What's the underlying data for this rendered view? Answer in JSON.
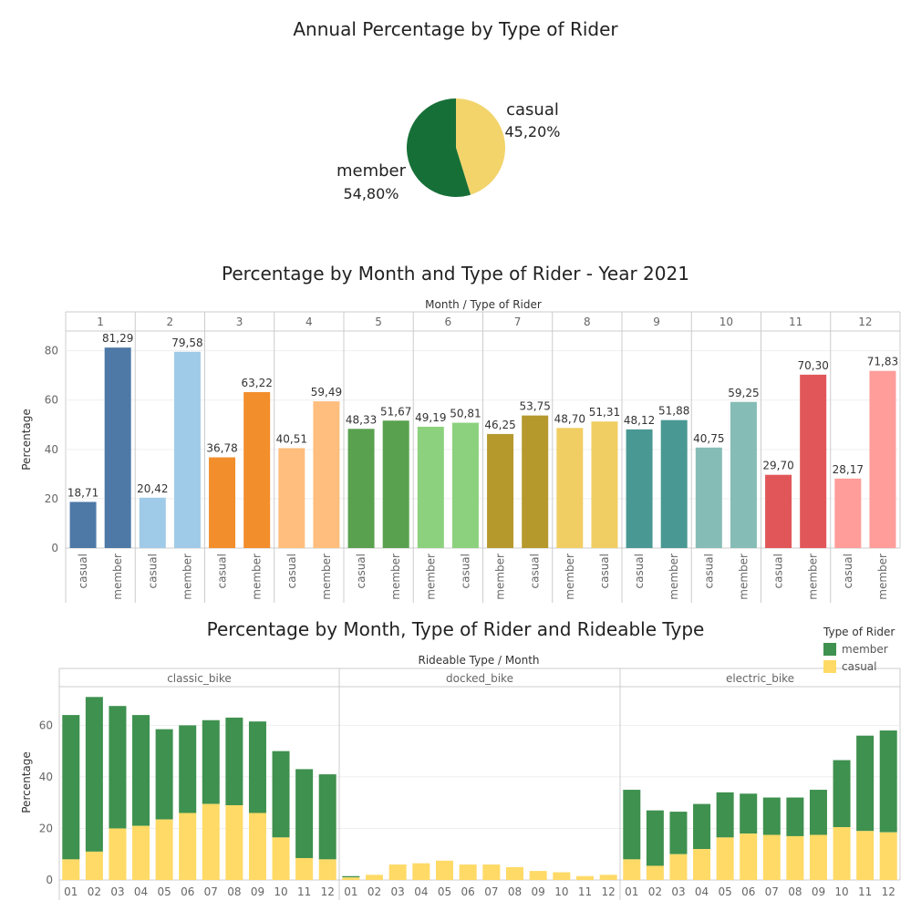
{
  "pie": {
    "title": "Annual Percentage by Type of Rider",
    "casual_label": "casual",
    "casual_value": "45,20%",
    "member_label": "member",
    "member_value": "54,80%"
  },
  "bars": {
    "title": "Percentage by Month and Type of Rider - Year 2021",
    "header": "Month  /  Type of Rider",
    "ylabel": "Percentage"
  },
  "stacked": {
    "title": "Percentage by Month, Type of Rider and Rideable Type",
    "header": "Rideable Type  /  Month",
    "ylabel": "Percentage"
  },
  "legend": {
    "title": "Type of Rider",
    "member": "member",
    "casual": "casual"
  },
  "chart_data": [
    {
      "type": "pie",
      "title": "Annual Percentage by Type of Rider",
      "slices": [
        {
          "name": "member",
          "value": 54.8,
          "label": "54,80%",
          "color": "#166F37"
        },
        {
          "name": "casual",
          "value": 45.2,
          "label": "45,20%",
          "color": "#F2D46B"
        }
      ]
    },
    {
      "type": "bar",
      "title": "Percentage by Month and Type of Rider - Year 2021",
      "xlabel": "Month / Type of Rider",
      "ylabel": "Percentage",
      "ylim": [
        0,
        88
      ],
      "yticks": [
        0,
        20,
        40,
        60,
        80
      ],
      "groups": [
        {
          "month": "1",
          "bars": [
            {
              "rider": "casual",
              "value": 18.71,
              "label": "18,71",
              "color": "#4E79A7"
            },
            {
              "rider": "member",
              "value": 81.29,
              "label": "81,29",
              "color": "#4E79A7"
            }
          ]
        },
        {
          "month": "2",
          "bars": [
            {
              "rider": "casual",
              "value": 20.42,
              "label": "20,42",
              "color": "#A0CBE8"
            },
            {
              "rider": "member",
              "value": 79.58,
              "label": "79,58",
              "color": "#A0CBE8"
            }
          ]
        },
        {
          "month": "3",
          "bars": [
            {
              "rider": "casual",
              "value": 36.78,
              "label": "36,78",
              "color": "#F28E2B"
            },
            {
              "rider": "member",
              "value": 63.22,
              "label": "63,22",
              "color": "#F28E2B"
            }
          ]
        },
        {
          "month": "4",
          "bars": [
            {
              "rider": "casual",
              "value": 40.51,
              "label": "40,51",
              "color": "#FFBE7D"
            },
            {
              "rider": "member",
              "value": 59.49,
              "label": "59,49",
              "color": "#FFBE7D"
            }
          ]
        },
        {
          "month": "5",
          "bars": [
            {
              "rider": "casual",
              "value": 48.33,
              "label": "48,33",
              "color": "#59A14F"
            },
            {
              "rider": "member",
              "value": 51.67,
              "label": "51,67",
              "color": "#59A14F"
            }
          ]
        },
        {
          "month": "6",
          "bars": [
            {
              "rider": "member",
              "value": 49.19,
              "label": "49,19",
              "color": "#8CD17D"
            },
            {
              "rider": "casual",
              "value": 50.81,
              "label": "50,81",
              "color": "#8CD17D"
            }
          ]
        },
        {
          "month": "7",
          "bars": [
            {
              "rider": "member",
              "value": 46.25,
              "label": "46,25",
              "color": "#B6992D"
            },
            {
              "rider": "casual",
              "value": 53.75,
              "label": "53,75",
              "color": "#B6992D"
            }
          ]
        },
        {
          "month": "8",
          "bars": [
            {
              "rider": "member",
              "value": 48.7,
              "label": "48,70",
              "color": "#F1CE63"
            },
            {
              "rider": "casual",
              "value": 51.31,
              "label": "51,31",
              "color": "#F1CE63"
            }
          ]
        },
        {
          "month": "9",
          "bars": [
            {
              "rider": "casual",
              "value": 48.12,
              "label": "48,12",
              "color": "#499894"
            },
            {
              "rider": "member",
              "value": 51.88,
              "label": "51,88",
              "color": "#499894"
            }
          ]
        },
        {
          "month": "10",
          "bars": [
            {
              "rider": "casual",
              "value": 40.75,
              "label": "40,75",
              "color": "#86BCB6"
            },
            {
              "rider": "member",
              "value": 59.25,
              "label": "59,25",
              "color": "#86BCB6"
            }
          ]
        },
        {
          "month": "11",
          "bars": [
            {
              "rider": "casual",
              "value": 29.7,
              "label": "29,70",
              "color": "#E15759"
            },
            {
              "rider": "member",
              "value": 70.3,
              "label": "70,30",
              "color": "#E15759"
            }
          ]
        },
        {
          "month": "12",
          "bars": [
            {
              "rider": "casual",
              "value": 28.17,
              "label": "28,17",
              "color": "#FF9D9A"
            },
            {
              "rider": "member",
              "value": 71.83,
              "label": "71,83",
              "color": "#FF9D9A"
            }
          ]
        }
      ]
    },
    {
      "type": "bar",
      "stacked": true,
      "title": "Percentage by Month, Type of Rider and Rideable Type",
      "xlabel": "Rideable Type / Month",
      "ylabel": "Percentage",
      "ylim": [
        0,
        75
      ],
      "yticks": [
        0,
        20,
        40,
        60
      ],
      "categories": [
        "01",
        "02",
        "03",
        "04",
        "05",
        "06",
        "07",
        "08",
        "09",
        "10",
        "11",
        "12"
      ],
      "legend": "top-right",
      "series_colors": {
        "member": "#3E914E",
        "casual": "#FFDA66"
      },
      "panels": [
        {
          "name": "classic_bike",
          "casual": [
            8,
            11,
            20,
            21,
            23.5,
            26,
            29.5,
            29,
            26,
            16.5,
            8.5,
            8
          ],
          "member": [
            56,
            60,
            47.5,
            43,
            35,
            34,
            32.5,
            34,
            35.5,
            33.5,
            34.5,
            33
          ]
        },
        {
          "name": "docked_bike",
          "casual": [
            1,
            2,
            6,
            6.5,
            7.5,
            6,
            6,
            5,
            3.5,
            3,
            1.5,
            2
          ],
          "member": [
            0.5,
            0,
            0,
            0,
            0,
            0,
            0,
            0,
            0,
            0,
            0,
            0
          ]
        },
        {
          "name": "electric_bike",
          "casual": [
            8,
            5.5,
            10,
            12,
            16.5,
            18,
            17.5,
            17,
            17.5,
            20.5,
            19,
            18.5
          ],
          "member": [
            27,
            21.5,
            16.5,
            17.5,
            17.5,
            15.5,
            14.5,
            15,
            17.5,
            26,
            37,
            39.5
          ]
        }
      ]
    }
  ]
}
